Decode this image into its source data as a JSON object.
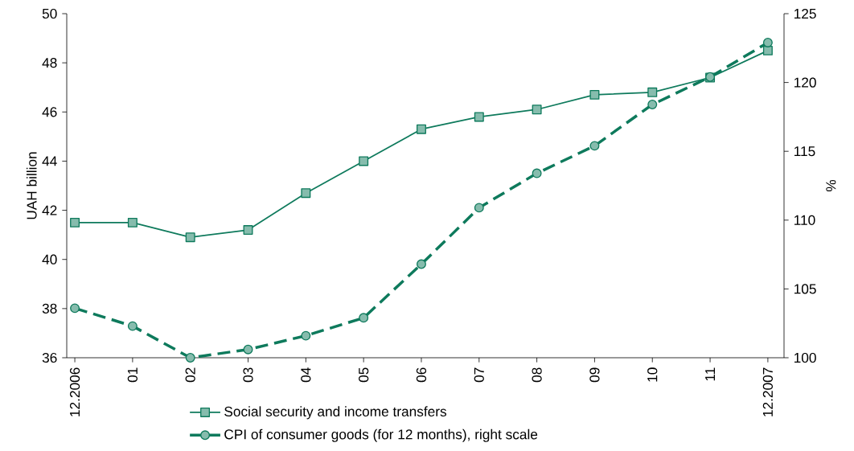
{
  "chart_data": {
    "type": "line",
    "categories": [
      "12.2006",
      "01",
      "02",
      "03",
      "04",
      "05",
      "06",
      "07",
      "08",
      "09",
      "10",
      "11",
      "12.2007"
    ],
    "ylabel": "UAH billion",
    "y2label": "%",
    "ylim": [
      36,
      50
    ],
    "yticks": [
      36,
      38,
      40,
      42,
      44,
      46,
      48,
      50
    ],
    "y2lim": [
      100,
      125
    ],
    "y2ticks": [
      100,
      105,
      110,
      115,
      120,
      125
    ],
    "legend": "bottom",
    "grid": false,
    "series": [
      {
        "name": "Social security and income transfers",
        "color": "#0e7a5c",
        "marker": "square",
        "line_style": "solid",
        "values": [
          41.5,
          41.5,
          40.9,
          41.2,
          42.7,
          44.0,
          45.3,
          45.8,
          46.1,
          46.7,
          46.8,
          47.4,
          48.5
        ]
      },
      {
        "name": "CPI of consumer goods (for 12 months), right scale",
        "color": "#0e7a5c",
        "marker": "circle",
        "line_style": "dashed",
        "axis": "y2",
        "values": [
          103.6,
          102.3,
          100.0,
          100.6,
          101.6,
          102.9,
          106.8,
          110.9,
          113.4,
          115.4,
          118.4,
          120.4,
          122.9
        ]
      }
    ]
  }
}
